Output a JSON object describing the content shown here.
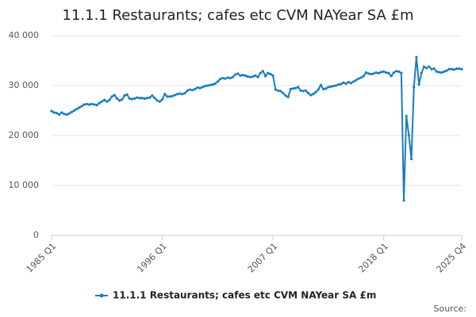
{
  "chart_data": {
    "type": "line",
    "title": "11.1.1 Restaurants; cafes etc CVM NAYear SA £m",
    "source": "Source:",
    "categories": [
      "1985 Q1",
      null,
      null,
      null,
      null,
      null,
      null,
      null,
      null,
      null,
      null,
      null,
      null,
      null,
      null,
      null,
      null,
      null,
      null,
      null,
      null,
      null,
      null,
      null,
      null,
      null,
      null,
      null,
      null,
      null,
      null,
      null,
      null,
      null,
      null,
      null,
      null,
      null,
      null,
      null,
      null,
      null,
      null,
      null,
      "1996 Q1",
      null,
      null,
      null,
      null,
      null,
      null,
      null,
      null,
      null,
      null,
      null,
      null,
      null,
      null,
      null,
      null,
      null,
      null,
      null,
      null,
      null,
      null,
      null,
      null,
      null,
      null,
      null,
      null,
      null,
      null,
      null,
      null,
      null,
      null,
      null,
      null,
      null,
      null,
      null,
      null,
      null,
      null,
      null,
      "2007 Q1",
      null,
      null,
      null,
      null,
      null,
      null,
      null,
      null,
      null,
      null,
      null,
      null,
      null,
      null,
      null,
      null,
      null,
      null,
      null,
      null,
      null,
      null,
      null,
      null,
      null,
      null,
      null,
      null,
      null,
      null,
      null,
      null,
      null,
      null,
      null,
      null,
      null,
      null,
      null,
      null,
      null,
      null,
      null,
      "2018 Q1",
      null,
      null,
      null,
      null,
      null,
      null,
      null,
      null,
      null,
      null,
      null,
      null,
      null,
      null,
      null,
      null,
      null,
      null,
      null,
      null,
      null,
      null,
      null,
      null,
      null,
      null,
      null,
      null,
      null,
      null,
      "2025 Q4"
    ],
    "series": [
      {
        "name": "11.1.1 Restaurants; cafes etc CVM NAYear SA £m",
        "color": "#1a7dc0",
        "values": [
          24900,
          24600,
          24500,
          24200,
          24600,
          24300,
          24200,
          24400,
          24700,
          25000,
          25300,
          25600,
          25900,
          26200,
          26300,
          26200,
          26300,
          26200,
          26100,
          26500,
          26800,
          27100,
          26800,
          27100,
          27800,
          28100,
          27400,
          27000,
          27200,
          28000,
          28200,
          27400,
          27300,
          27400,
          27600,
          27500,
          27500,
          27400,
          27500,
          27600,
          28000,
          27500,
          27000,
          26800,
          27200,
          28300,
          27800,
          27800,
          27900,
          28100,
          28300,
          28400,
          28300,
          28500,
          29000,
          29200,
          29100,
          29300,
          29600,
          29500,
          29700,
          29900,
          30000,
          30100,
          30200,
          30400,
          30800,
          31300,
          31500,
          31400,
          31600,
          31500,
          31700,
          32200,
          32400,
          32000,
          32100,
          32000,
          31800,
          31700,
          31800,
          32000,
          31700,
          32500,
          32900,
          31900,
          32500,
          32300,
          32000,
          29200,
          29000,
          28900,
          28500,
          28000,
          27700,
          29300,
          29400,
          29500,
          29700,
          29000,
          28900,
          29000,
          28500,
          28100,
          28300,
          28700,
          29200,
          30100,
          29300,
          29400,
          29700,
          29800,
          29900,
          30000,
          30200,
          30300,
          30600,
          30400,
          30700,
          30500,
          30800,
          31100,
          31400,
          31600,
          31900,
          32600,
          32400,
          32300,
          32400,
          32600,
          32500,
          32700,
          32800,
          32600,
          32500,
          31900,
          32600,
          32900,
          32800,
          32500,
          7000,
          23900,
          20000,
          15300,
          29700,
          35700,
          30200,
          32500,
          33800,
          33500,
          33800,
          33300,
          33400,
          32800,
          32700,
          32600,
          32800,
          33000,
          33300,
          33300,
          33200,
          33400,
          33400,
          33300
        ]
      }
    ],
    "ylim": [
      0,
      40000
    ],
    "yticks": [
      0,
      {
        "value": 10000,
        "label": "10 000"
      },
      {
        "value": 20000,
        "label": "20 000"
      },
      {
        "value": 30000,
        "label": "30 000"
      },
      {
        "value": 40000,
        "label": "40 000"
      }
    ],
    "grid": true,
    "legend": "bottom"
  }
}
